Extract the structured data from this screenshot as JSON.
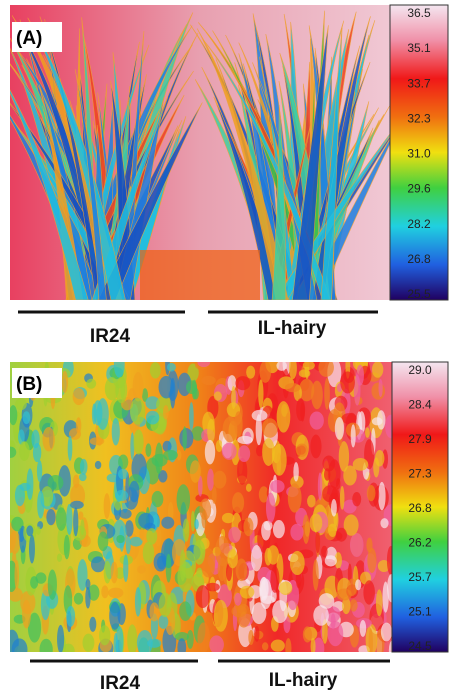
{
  "panels": [
    {
      "label": "(A)",
      "colorbar": [
        "36.5",
        "35.1",
        "33.7",
        "32.3",
        "31.0",
        "29.6",
        "28.2",
        "26.8",
        "25.5"
      ],
      "groups": [
        "IR24",
        "IL-hairy"
      ]
    },
    {
      "label": "(B)",
      "colorbar": [
        "29.0",
        "28.4",
        "27.9",
        "27.3",
        "26.8",
        "26.2",
        "25.7",
        "25.1",
        "24.5"
      ],
      "groups": [
        "IR24",
        "IL-hairy"
      ]
    }
  ]
}
